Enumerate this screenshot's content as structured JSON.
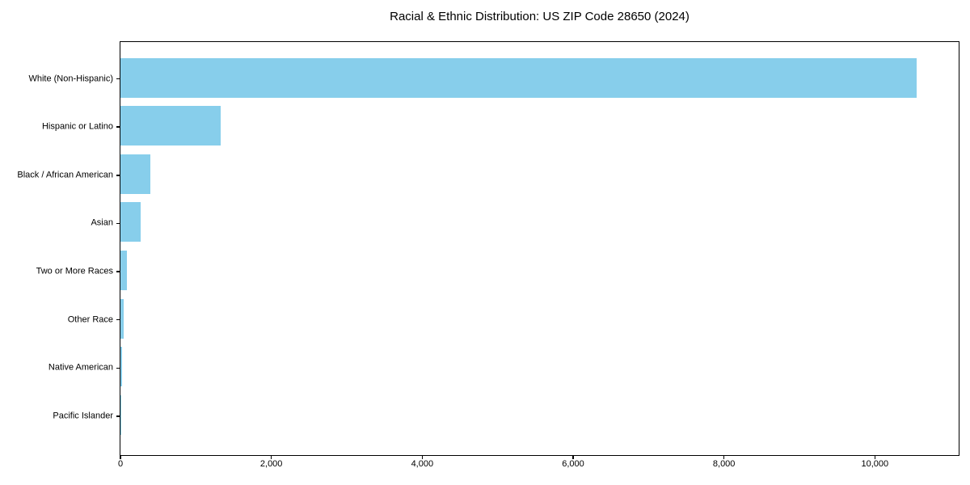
{
  "chart_data": {
    "type": "bar",
    "orientation": "horizontal",
    "title": "Racial & Ethnic Distribution: US ZIP Code 28650 (2024)",
    "categories": [
      "White (Non-Hispanic)",
      "Hispanic or Latino",
      "Black / African American",
      "Asian",
      "Two or More Races",
      "Other Race",
      "Native American",
      "Pacific Islander"
    ],
    "values": [
      10550,
      1330,
      395,
      270,
      85,
      38,
      25,
      8
    ],
    "xlabel": "",
    "ylabel": "",
    "xlim": [
      0,
      11100
    ],
    "x_ticks": [
      {
        "value": 0,
        "label": "0"
      },
      {
        "value": 2000,
        "label": "2,000"
      },
      {
        "value": 4000,
        "label": "4,000"
      },
      {
        "value": 6000,
        "label": "6,000"
      },
      {
        "value": 8000,
        "label": "8,000"
      },
      {
        "value": 10000,
        "label": "10,000"
      }
    ],
    "bar_color": "#87CEEB",
    "axis_color": "#000000",
    "background_color": "#FFFFFF",
    "grid": false,
    "legend": null
  }
}
